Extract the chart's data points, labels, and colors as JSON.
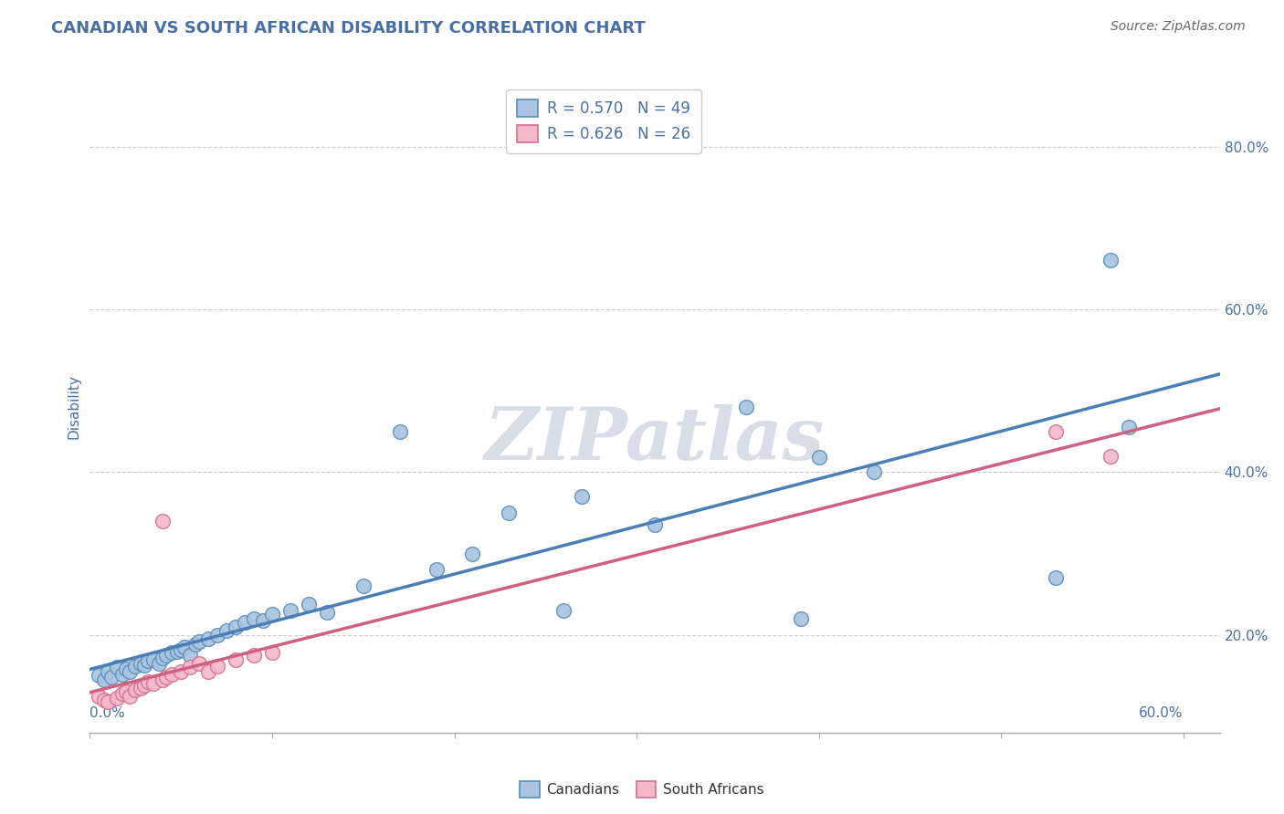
{
  "title": "CANADIAN VS SOUTH AFRICAN DISABILITY CORRELATION CHART",
  "source": "Source: ZipAtlas.com",
  "ylabel": "Disability",
  "xlim": [
    0.0,
    0.62
  ],
  "ylim": [
    0.08,
    0.88
  ],
  "y_ticks": [
    0.2,
    0.4,
    0.6,
    0.8
  ],
  "x_tick_positions": [
    0.0,
    0.1,
    0.2,
    0.3,
    0.4,
    0.5,
    0.6
  ],
  "canadian_fill": "#a8c4e0",
  "canadian_edge": "#5b8db8",
  "sa_fill": "#f4b8c8",
  "sa_edge": "#d07090",
  "line_blue": "#4a7fb5",
  "line_pink": "#d06080",
  "grid_color": "#cccccc",
  "title_color": "#4a6fa5",
  "source_color": "#666666",
  "tick_color": "#4a6fa5",
  "ylabel_color": "#4a6fa5",
  "watermark_color": "#d8dde8",
  "legend_edge": "#cccccc",
  "canadians_x": [
    0.005,
    0.008,
    0.01,
    0.012,
    0.015,
    0.018,
    0.02,
    0.022,
    0.025,
    0.028,
    0.03,
    0.032,
    0.035,
    0.038,
    0.04,
    0.042,
    0.045,
    0.048,
    0.05,
    0.052,
    0.055,
    0.058,
    0.06,
    0.065,
    0.07,
    0.075,
    0.08,
    0.085,
    0.09,
    0.095,
    0.1,
    0.11,
    0.12,
    0.13,
    0.15,
    0.17,
    0.19,
    0.21,
    0.23,
    0.26,
    0.27,
    0.31,
    0.36,
    0.39,
    0.4,
    0.43,
    0.53,
    0.56,
    0.57
  ],
  "canadians_y": [
    0.15,
    0.145,
    0.155,
    0.148,
    0.16,
    0.152,
    0.158,
    0.155,
    0.162,
    0.165,
    0.163,
    0.168,
    0.17,
    0.165,
    0.172,
    0.175,
    0.178,
    0.18,
    0.182,
    0.185,
    0.175,
    0.188,
    0.192,
    0.195,
    0.2,
    0.205,
    0.21,
    0.215,
    0.22,
    0.218,
    0.225,
    0.23,
    0.238,
    0.228,
    0.26,
    0.45,
    0.28,
    0.3,
    0.35,
    0.23,
    0.37,
    0.335,
    0.48,
    0.22,
    0.418,
    0.4,
    0.27,
    0.66,
    0.455
  ],
  "sa_x": [
    0.005,
    0.008,
    0.01,
    0.015,
    0.018,
    0.02,
    0.022,
    0.025,
    0.028,
    0.03,
    0.032,
    0.035,
    0.04,
    0.042,
    0.045,
    0.05,
    0.055,
    0.06,
    0.065,
    0.07,
    0.08,
    0.09,
    0.1,
    0.04,
    0.53,
    0.56
  ],
  "sa_y": [
    0.125,
    0.12,
    0.118,
    0.122,
    0.128,
    0.13,
    0.125,
    0.132,
    0.135,
    0.138,
    0.142,
    0.14,
    0.145,
    0.148,
    0.152,
    0.155,
    0.16,
    0.165,
    0.155,
    0.162,
    0.17,
    0.175,
    0.178,
    0.34,
    0.45,
    0.42
  ],
  "legend_r_can": "R = 0.570",
  "legend_n_can": "N = 49",
  "legend_r_sa": "R = 0.626",
  "legend_n_sa": "N = 26"
}
